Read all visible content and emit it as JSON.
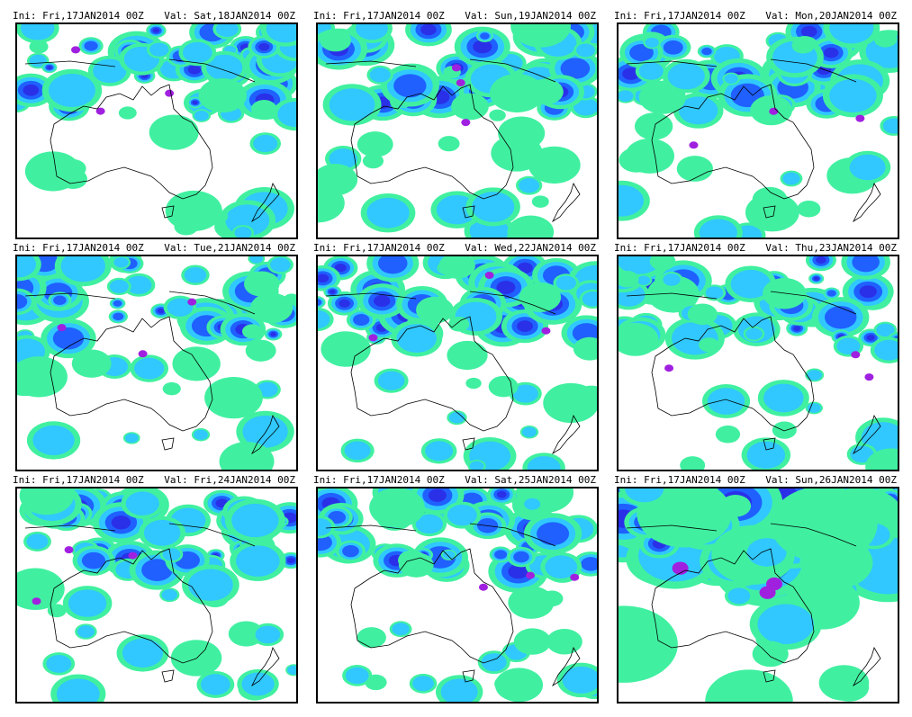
{
  "panels": [
    {
      "ini": "Ini: Fri,17JAN2014 00Z",
      "val": "Val: Sat,18JAN2014 00Z"
    },
    {
      "ini": "Ini: Fri,17JAN2014 00Z",
      "val": "Val: Sun,19JAN2014 00Z"
    },
    {
      "ini": "Ini: Fri,17JAN2014 00Z",
      "val": "Val: Mon,20JAN2014 00Z"
    },
    {
      "ini": "Ini: Fri,17JAN2014 00Z",
      "val": "Val: Tue,21JAN2014 00Z"
    },
    {
      "ini": "Ini: Fri,17JAN2014 00Z",
      "val": "Val: Wed,22JAN2014 00Z"
    },
    {
      "ini": "Ini: Fri,17JAN2014 00Z",
      "val": "Val: Thu,23JAN2014 00Z"
    },
    {
      "ini": "Ini: Fri,17JAN2014 00Z",
      "val": "Val: Fri,24JAN2014 00Z"
    },
    {
      "ini": "Ini: Fri,17JAN2014 00Z",
      "val": "Val: Sat,25JAN2014 00Z"
    },
    {
      "ini": "Ini: Fri,17JAN2014 00Z",
      "val": "Val: Sun,26JAN2014 00Z"
    }
  ]
}
